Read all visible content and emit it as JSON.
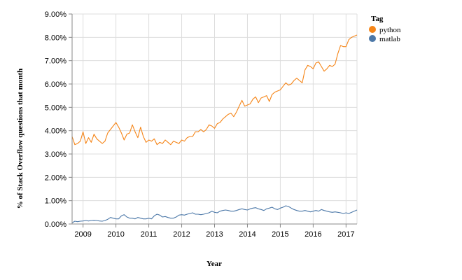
{
  "chart_data": {
    "type": "line",
    "xlabel": "Year",
    "ylabel": "% of Stack Overflow questions that month",
    "x_ticks": [
      "2009",
      "2010",
      "2011",
      "2012",
      "2013",
      "2014",
      "2015",
      "2016",
      "2017"
    ],
    "y_ticks": [
      "0.00%",
      "1.00%",
      "2.00%",
      "3.00%",
      "4.00%",
      "5.00%",
      "6.00%",
      "7.00%",
      "8.00%",
      "9.00%"
    ],
    "xlim": [
      "2008-09",
      "2017-05"
    ],
    "ylim": [
      0,
      9
    ],
    "grid": true,
    "legend": {
      "title": "Tag",
      "position": "right"
    },
    "x": [
      "2008-09",
      "2008-10",
      "2008-11",
      "2008-12",
      "2009-01",
      "2009-02",
      "2009-03",
      "2009-04",
      "2009-05",
      "2009-06",
      "2009-07",
      "2009-08",
      "2009-09",
      "2009-10",
      "2009-11",
      "2009-12",
      "2010-01",
      "2010-02",
      "2010-03",
      "2010-04",
      "2010-05",
      "2010-06",
      "2010-07",
      "2010-08",
      "2010-09",
      "2010-10",
      "2010-11",
      "2010-12",
      "2011-01",
      "2011-02",
      "2011-03",
      "2011-04",
      "2011-05",
      "2011-06",
      "2011-07",
      "2011-08",
      "2011-09",
      "2011-10",
      "2011-11",
      "2011-12",
      "2012-01",
      "2012-02",
      "2012-03",
      "2012-04",
      "2012-05",
      "2012-06",
      "2012-07",
      "2012-08",
      "2012-09",
      "2012-10",
      "2012-11",
      "2012-12",
      "2013-01",
      "2013-02",
      "2013-03",
      "2013-04",
      "2013-05",
      "2013-06",
      "2013-07",
      "2013-08",
      "2013-09",
      "2013-10",
      "2013-11",
      "2013-12",
      "2014-01",
      "2014-02",
      "2014-03",
      "2014-04",
      "2014-05",
      "2014-06",
      "2014-07",
      "2014-08",
      "2014-09",
      "2014-10",
      "2014-11",
      "2014-12",
      "2015-01",
      "2015-02",
      "2015-03",
      "2015-04",
      "2015-05",
      "2015-06",
      "2015-07",
      "2015-08",
      "2015-09",
      "2015-10",
      "2015-11",
      "2015-12",
      "2016-01",
      "2016-02",
      "2016-03",
      "2016-04",
      "2016-05",
      "2016-06",
      "2016-07",
      "2016-08",
      "2016-09",
      "2016-10",
      "2016-11",
      "2016-12",
      "2017-01",
      "2017-02",
      "2017-03",
      "2017-04",
      "2017-05"
    ],
    "series": [
      {
        "name": "python",
        "color": "#f58518",
        "values": [
          3.75,
          3.4,
          3.45,
          3.55,
          3.95,
          3.45,
          3.7,
          3.5,
          3.85,
          3.65,
          3.55,
          3.45,
          3.55,
          3.9,
          4.05,
          4.2,
          4.35,
          4.15,
          3.9,
          3.6,
          3.85,
          3.9,
          4.25,
          3.95,
          3.7,
          4.15,
          3.75,
          3.5,
          3.6,
          3.55,
          3.65,
          3.4,
          3.5,
          3.45,
          3.6,
          3.5,
          3.4,
          3.55,
          3.5,
          3.45,
          3.6,
          3.55,
          3.7,
          3.75,
          3.75,
          3.95,
          3.95,
          4.05,
          3.95,
          4.05,
          4.25,
          4.2,
          4.1,
          4.3,
          4.35,
          4.5,
          4.6,
          4.7,
          4.75,
          4.6,
          4.8,
          5.05,
          5.3,
          5.05,
          5.1,
          5.15,
          5.35,
          5.45,
          5.2,
          5.4,
          5.45,
          5.5,
          5.25,
          5.55,
          5.65,
          5.7,
          5.75,
          5.9,
          6.05,
          5.95,
          6.0,
          6.15,
          6.25,
          6.15,
          6.05,
          6.6,
          6.8,
          6.75,
          6.65,
          6.9,
          6.95,
          6.75,
          6.55,
          6.65,
          6.8,
          6.75,
          6.85,
          7.3,
          7.65,
          7.6,
          7.6,
          7.9,
          8.0,
          8.05,
          8.1
        ]
      },
      {
        "name": "matlab",
        "color": "#4c78a8",
        "values": [
          0.05,
          0.12,
          0.1,
          0.12,
          0.13,
          0.15,
          0.13,
          0.15,
          0.16,
          0.15,
          0.13,
          0.12,
          0.15,
          0.2,
          0.28,
          0.25,
          0.22,
          0.22,
          0.35,
          0.4,
          0.3,
          0.25,
          0.25,
          0.22,
          0.28,
          0.25,
          0.22,
          0.22,
          0.25,
          0.22,
          0.35,
          0.42,
          0.38,
          0.3,
          0.32,
          0.28,
          0.25,
          0.25,
          0.3,
          0.38,
          0.4,
          0.38,
          0.42,
          0.45,
          0.48,
          0.42,
          0.42,
          0.4,
          0.42,
          0.45,
          0.48,
          0.55,
          0.5,
          0.48,
          0.55,
          0.58,
          0.6,
          0.58,
          0.55,
          0.55,
          0.58,
          0.62,
          0.65,
          0.62,
          0.6,
          0.65,
          0.68,
          0.7,
          0.65,
          0.62,
          0.58,
          0.65,
          0.68,
          0.72,
          0.65,
          0.62,
          0.68,
          0.72,
          0.78,
          0.75,
          0.68,
          0.62,
          0.58,
          0.55,
          0.55,
          0.58,
          0.55,
          0.52,
          0.55,
          0.58,
          0.55,
          0.62,
          0.58,
          0.55,
          0.52,
          0.5,
          0.52,
          0.5,
          0.48,
          0.45,
          0.48,
          0.45,
          0.5,
          0.55,
          0.6
        ]
      }
    ]
  }
}
